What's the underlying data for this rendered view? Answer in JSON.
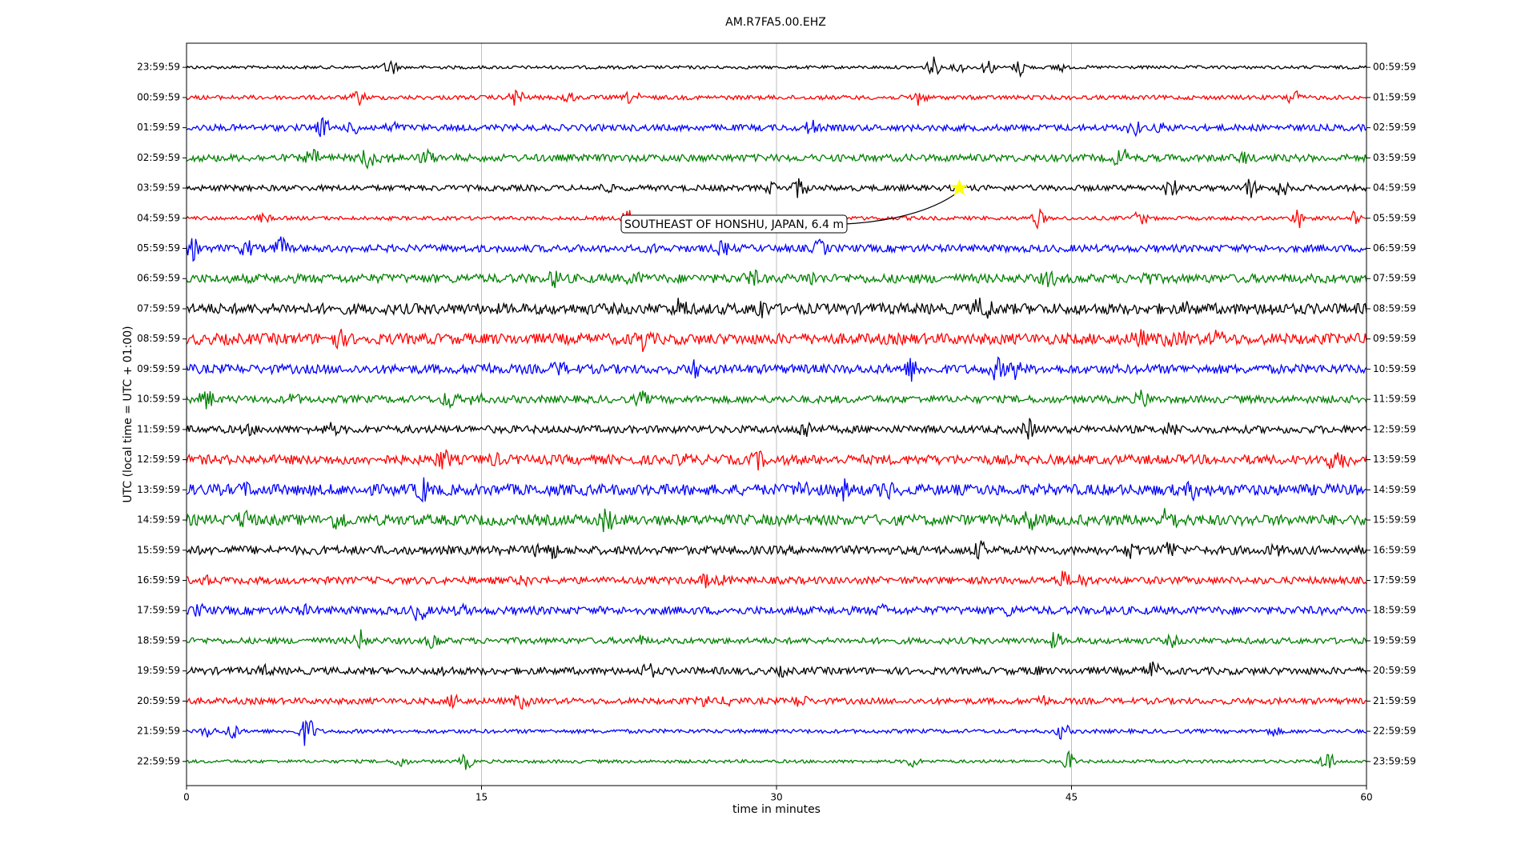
{
  "chart_data": {
    "type": "helicorder",
    "title": "AM.R7FA5.00.EHZ",
    "x_label": "time in minutes",
    "y_label": "UTC (local time = UTC + 01:00)",
    "xlim": [
      0,
      60
    ],
    "xticks": [
      0,
      15,
      30,
      45,
      60
    ],
    "grid": true,
    "ylim": [
      -0.8,
      23.8
    ],
    "yticks": [
      {
        "value": 0,
        "label": "23:59:59"
      },
      {
        "value": 1,
        "label": "00:59:59"
      },
      {
        "value": 2,
        "label": "01:59:59"
      },
      {
        "value": 3,
        "label": "02:59:59"
      },
      {
        "value": 4,
        "label": "03:59:59"
      },
      {
        "value": 5,
        "label": "04:59:59"
      },
      {
        "value": 6,
        "label": "05:59:59"
      },
      {
        "value": 7,
        "label": "06:59:59"
      },
      {
        "value": 8,
        "label": "07:59:59"
      },
      {
        "value": 9,
        "label": "08:59:59"
      },
      {
        "value": 10,
        "label": "09:59:59"
      },
      {
        "value": 11,
        "label": "10:59:59"
      },
      {
        "value": 12,
        "label": "11:59:59"
      },
      {
        "value": 13,
        "label": "12:59:59"
      },
      {
        "value": 14,
        "label": "13:59:59"
      },
      {
        "value": 15,
        "label": "14:59:59"
      },
      {
        "value": 16,
        "label": "15:59:59"
      },
      {
        "value": 17,
        "label": "16:59:59"
      },
      {
        "value": 18,
        "label": "17:59:59"
      },
      {
        "value": 19,
        "label": "18:59:59"
      },
      {
        "value": 20,
        "label": "19:59:59"
      },
      {
        "value": 21,
        "label": "20:59:59"
      },
      {
        "value": 22,
        "label": "21:59:59"
      },
      {
        "value": 23,
        "label": "22:59:59"
      }
    ],
    "y2ticks": [
      {
        "value": 0,
        "label": "00:59:59"
      },
      {
        "value": 1,
        "label": "01:59:59"
      },
      {
        "value": 2,
        "label": "02:59:59"
      },
      {
        "value": 3,
        "label": "03:59:59"
      },
      {
        "value": 4,
        "label": "04:59:59"
      },
      {
        "value": 5,
        "label": "05:59:59"
      },
      {
        "value": 6,
        "label": "06:59:59"
      },
      {
        "value": 7,
        "label": "07:59:59"
      },
      {
        "value": 8,
        "label": "08:59:59"
      },
      {
        "value": 9,
        "label": "09:59:59"
      },
      {
        "value": 10,
        "label": "10:59:59"
      },
      {
        "value": 11,
        "label": "11:59:59"
      },
      {
        "value": 12,
        "label": "12:59:59"
      },
      {
        "value": 13,
        "label": "13:59:59"
      },
      {
        "value": 14,
        "label": "14:59:59"
      },
      {
        "value": 15,
        "label": "15:59:59"
      },
      {
        "value": 16,
        "label": "16:59:59"
      },
      {
        "value": 17,
        "label": "17:59:59"
      },
      {
        "value": 18,
        "label": "18:59:59"
      },
      {
        "value": 19,
        "label": "19:59:59"
      },
      {
        "value": 20,
        "label": "20:59:59"
      },
      {
        "value": 21,
        "label": "21:59:59"
      },
      {
        "value": 22,
        "label": "22:59:59"
      },
      {
        "value": 23,
        "label": "23:59:59"
      }
    ],
    "colors": [
      "#000000",
      "#ff0000",
      "#0000ff",
      "#008000"
    ],
    "event": {
      "label": "SOUTHEAST OF HONSHU, JAPAN, 6.4 m",
      "x": 39.3,
      "y": 4,
      "color": "#ffff00"
    }
  }
}
